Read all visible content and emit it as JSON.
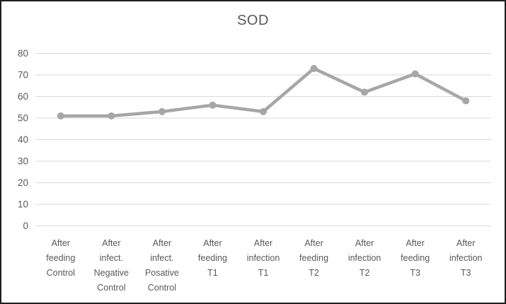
{
  "title": "SOD",
  "chart_data": {
    "type": "line",
    "title": "SOD",
    "categories_lines": [
      [
        "After",
        "feeding",
        "Control"
      ],
      [
        "After",
        "infect.",
        "Negative",
        "Control"
      ],
      [
        "After",
        "infect.",
        "Posative",
        "Control"
      ],
      [
        "After",
        "feeding",
        "T1"
      ],
      [
        "After",
        "infection",
        "T1"
      ],
      [
        "After",
        "feeding",
        "T2"
      ],
      [
        "After",
        "infection",
        "T2"
      ],
      [
        "After",
        "feeding",
        "T3"
      ],
      [
        "After",
        "infection",
        "T3"
      ]
    ],
    "values": [
      51,
      51,
      53,
      56,
      53,
      73,
      62,
      70.5,
      58
    ],
    "ylim": [
      0,
      80
    ],
    "yticks": [
      0,
      10,
      20,
      30,
      40,
      50,
      60,
      70,
      80
    ],
    "xlabel": "",
    "ylabel": "",
    "legend": "none",
    "grid": "horizontal",
    "colors": {
      "series": "#a6a6a6",
      "marker": "#a6a6a6",
      "gridline": "#d9d9d9",
      "axis_text": "#595959",
      "title_text": "#595959",
      "frame_border": "#1f1f1f",
      "background": "#ffffff"
    }
  }
}
